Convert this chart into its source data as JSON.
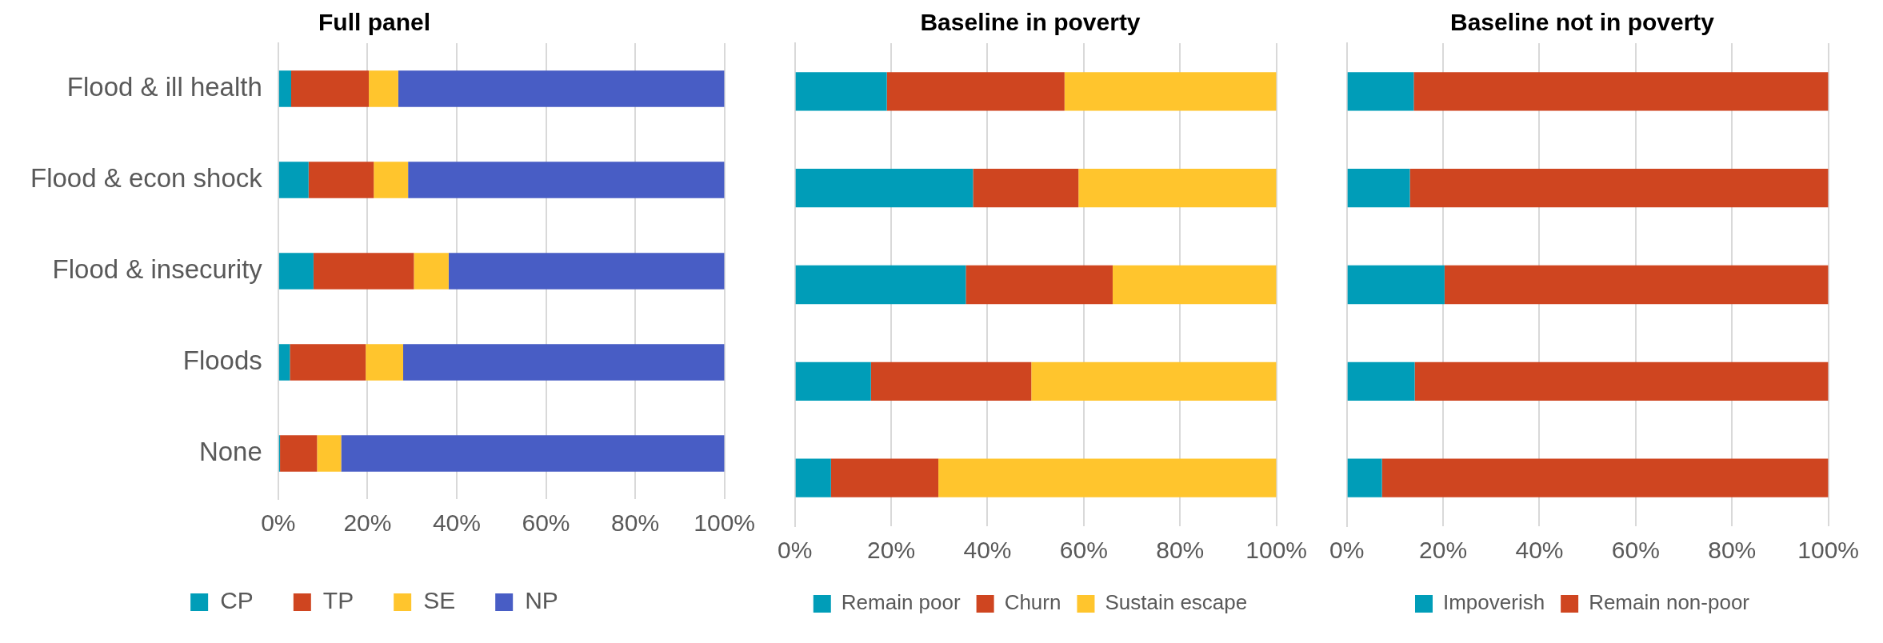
{
  "chart_data": [
    {
      "type": "bar",
      "orientation": "horizontal",
      "stacked": true,
      "title": "Full panel",
      "categories": [
        "Flood & ill health",
        "Flood & econ shock",
        "Flood & insecurity",
        "Floods",
        "None"
      ],
      "series": [
        {
          "name": "CP",
          "color": "#009db8",
          "values": [
            2.9,
            6.8,
            7.9,
            2.6,
            0.4
          ]
        },
        {
          "name": "TP",
          "color": "#cf4520",
          "values": [
            17.4,
            14.6,
            22.5,
            17.0,
            8.3
          ]
        },
        {
          "name": "SE",
          "color": "#ffc52d",
          "values": [
            6.6,
            7.7,
            7.8,
            8.4,
            5.4
          ]
        },
        {
          "name": "NP",
          "color": "#485dc5",
          "values": [
            73.1,
            70.9,
            61.8,
            72.0,
            85.9
          ]
        }
      ],
      "xlim": [
        0,
        100
      ],
      "xticks": [
        {
          "value": 0,
          "label": "0%"
        },
        {
          "value": 20,
          "label": "20%"
        },
        {
          "value": 40,
          "label": "40%"
        },
        {
          "value": 60,
          "label": "60%"
        },
        {
          "value": 80,
          "label": "80%"
        },
        {
          "value": 100,
          "label": "100%"
        }
      ],
      "grid": "x",
      "legend": "bottom"
    },
    {
      "type": "bar",
      "orientation": "horizontal",
      "stacked": true,
      "title": "Baseline in poverty",
      "categories": [
        null,
        null,
        null,
        null,
        null
      ],
      "series": [
        {
          "name": "Remain poor",
          "color": "#009db8",
          "values": [
            19.1,
            37.0,
            35.5,
            15.8,
            7.5
          ]
        },
        {
          "name": "Churn",
          "color": "#cf4520",
          "values": [
            36.9,
            21.9,
            30.5,
            33.3,
            22.3
          ]
        },
        {
          "name": "Sustain escape",
          "color": "#ffc52d",
          "values": [
            44.0,
            41.1,
            34.0,
            50.9,
            70.2
          ]
        }
      ],
      "xlim": [
        0,
        100
      ],
      "xticks": [
        {
          "value": 0,
          "label": "0%"
        },
        {
          "value": 20,
          "label": "20%"
        },
        {
          "value": 40,
          "label": "40%"
        },
        {
          "value": 60,
          "label": "60%"
        },
        {
          "value": 80,
          "label": "80%"
        },
        {
          "value": 100,
          "label": "100%"
        }
      ],
      "grid": "x",
      "legend": "bottom",
      "tick_labels": "x"
    },
    {
      "type": "bar",
      "orientation": "horizontal",
      "stacked": true,
      "title": "Baseline not in poverty",
      "categories": [
        null,
        null,
        null,
        null,
        null
      ],
      "series": [
        {
          "name": "Impoverish",
          "color": "#009db8",
          "values": [
            13.9,
            13.1,
            20.3,
            14.1,
            7.3
          ]
        },
        {
          "name": "Remain non-poor",
          "color": "#cf4520",
          "values": [
            86.1,
            86.9,
            79.7,
            85.9,
            92.7
          ]
        }
      ],
      "xlim": [
        0,
        100
      ],
      "xticks": [
        {
          "value": 0,
          "label": "0%"
        },
        {
          "value": 20,
          "label": "20%"
        },
        {
          "value": 40,
          "label": "40%"
        },
        {
          "value": 60,
          "label": "60%"
        },
        {
          "value": 80,
          "label": "80%"
        },
        {
          "value": 100,
          "label": "100%"
        }
      ],
      "grid": "x",
      "legend": "bottom",
      "tick_labels": "x"
    }
  ]
}
